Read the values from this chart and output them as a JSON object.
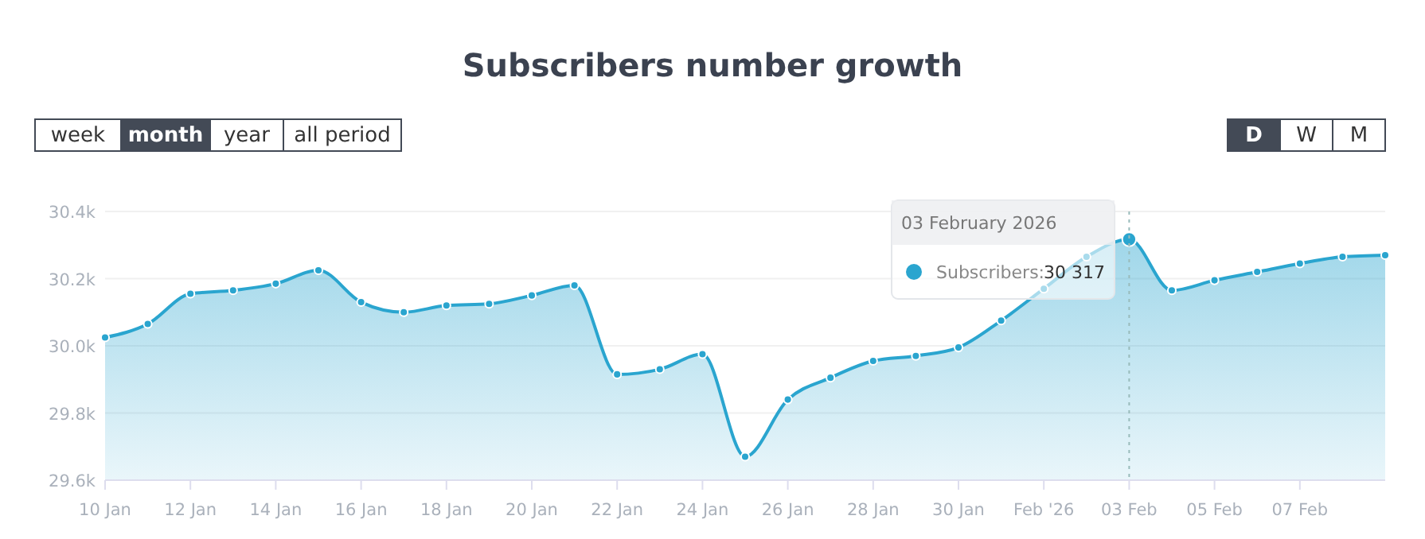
{
  "chart_data": {
    "type": "area",
    "title": "Subscribers number growth",
    "x": [
      "2026-01-10",
      "2026-01-11",
      "2026-01-12",
      "2026-01-13",
      "2026-01-14",
      "2026-01-15",
      "2026-01-16",
      "2026-01-17",
      "2026-01-18",
      "2026-01-19",
      "2026-01-20",
      "2026-01-21",
      "2026-01-22",
      "2026-01-23",
      "2026-01-24",
      "2026-01-25",
      "2026-01-26",
      "2026-01-27",
      "2026-01-28",
      "2026-01-29",
      "2026-01-30",
      "2026-01-31",
      "2026-02-01",
      "2026-02-02",
      "2026-02-03",
      "2026-02-04",
      "2026-02-05",
      "2026-02-06",
      "2026-02-07",
      "2026-02-08",
      "2026-02-09"
    ],
    "series": [
      {
        "color": "#2aa5cf",
        "values": [
          30025,
          30065,
          30155,
          30165,
          30185,
          30225,
          30130,
          30100,
          30120,
          30125,
          30150,
          30180,
          29915,
          29930,
          29975,
          29670,
          29840,
          29905,
          29955,
          29970,
          29995,
          30075,
          30170,
          30265,
          30317,
          30165,
          30195,
          30220,
          30245,
          30265,
          30270
        ],
        "value_labels": [
          null,
          null,
          null,
          null,
          null,
          null,
          null,
          null,
          null,
          null,
          null,
          null,
          null,
          null,
          null,
          null,
          null,
          null,
          null,
          null,
          null,
          null,
          null,
          null,
          "30 317",
          null,
          null,
          null,
          null,
          null,
          null
        ]
      }
    ],
    "xlim": [
      "2026-01-10",
      "2026-02-09"
    ],
    "xticks": [
      {
        "value": "2026-01-10",
        "label": "10 Jan"
      },
      {
        "value": "2026-01-12",
        "label": "12 Jan"
      },
      {
        "value": "2026-01-14",
        "label": "14 Jan"
      },
      {
        "value": "2026-01-16",
        "label": "16 Jan"
      },
      {
        "value": "2026-01-18",
        "label": "18 Jan"
      },
      {
        "value": "2026-01-20",
        "label": "20 Jan"
      },
      {
        "value": "2026-01-22",
        "label": "22 Jan"
      },
      {
        "value": "2026-01-24",
        "label": "24 Jan"
      },
      {
        "value": "2026-01-26",
        "label": "26 Jan"
      },
      {
        "value": "2026-01-28",
        "label": "28 Jan"
      },
      {
        "value": "2026-01-30",
        "label": "30 Jan"
      },
      {
        "value": "2026-02-01",
        "label": "Feb '26"
      },
      {
        "value": "2026-02-03",
        "label": "03 Feb"
      },
      {
        "value": "2026-02-05",
        "label": "05 Feb"
      },
      {
        "value": "2026-02-07",
        "label": "07 Feb"
      }
    ],
    "ylim": [
      29600,
      30400
    ],
    "yticks": [
      {
        "value": 29600,
        "label": "29.6k"
      },
      {
        "value": 29800,
        "label": "29.8k"
      },
      {
        "value": 30000,
        "label": "30.0k"
      },
      {
        "value": 30200,
        "label": "30.2k"
      },
      {
        "value": 30400,
        "label": "30.4k"
      }
    ],
    "grid": "y",
    "marker": "circle",
    "line_style": "solid",
    "ref_lines": [
      {
        "axis": "x",
        "value": "2026-02-03",
        "line_style": "dotted"
      }
    ],
    "annotations": [
      "03 February 2026",
      "Subscribers:",
      "week",
      "month",
      "year",
      "all period",
      "D",
      "W",
      "M"
    ]
  }
}
